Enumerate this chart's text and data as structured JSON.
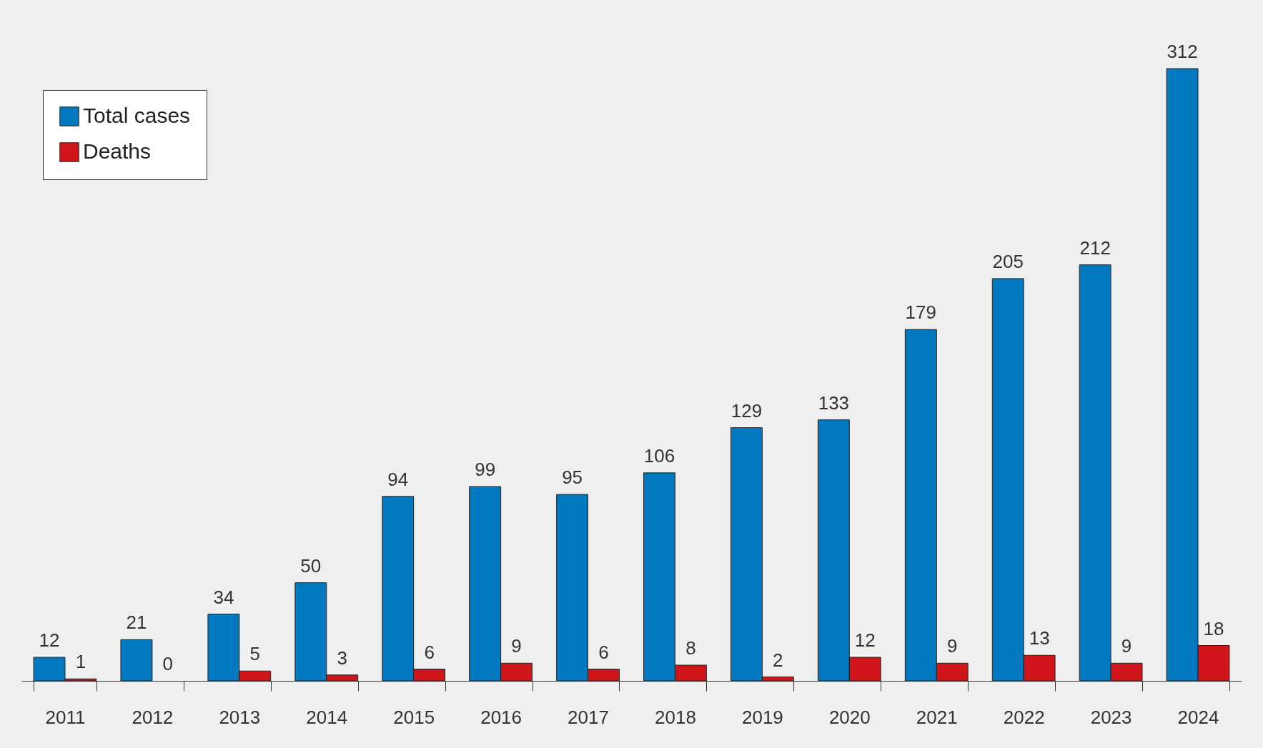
{
  "chart_data": {
    "type": "bar",
    "categories": [
      "2011",
      "2012",
      "2013",
      "2014",
      "2015",
      "2016",
      "2017",
      "2018",
      "2019",
      "2020",
      "2021",
      "2022",
      "2023",
      "2024"
    ],
    "series": [
      {
        "name": "Total cases",
        "color": "#0079c1",
        "values": [
          12,
          21,
          34,
          50,
          94,
          99,
          95,
          106,
          129,
          133,
          179,
          205,
          212,
          312
        ]
      },
      {
        "name": "Deaths",
        "color": "#d0161b",
        "values": [
          1,
          0,
          5,
          3,
          6,
          9,
          6,
          8,
          2,
          12,
          9,
          13,
          9,
          18
        ]
      }
    ],
    "data_labels": true,
    "legend": "top left",
    "grid": false
  }
}
